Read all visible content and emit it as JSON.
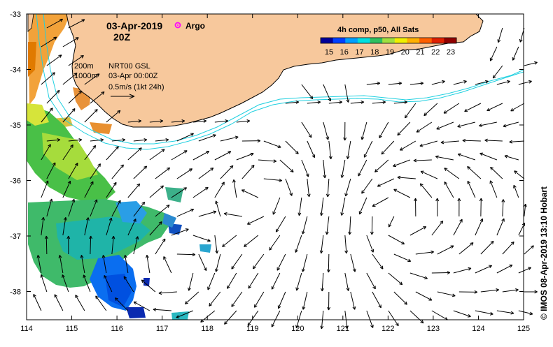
{
  "map": {
    "date_label": "03-Apr-2019",
    "time_label": "20Z",
    "argo_label": "Argo",
    "colorbar_title": "4h comp, p50, All Sats",
    "colorbar_ticks": [
      "15",
      "16",
      "17",
      "18",
      "19",
      "20",
      "21",
      "22",
      "23"
    ],
    "colorbar_colors": [
      "#000099",
      "#0040ff",
      "#00a0ff",
      "#00e0e0",
      "#30c060",
      "#a0e040",
      "#f0f000",
      "#ffb000",
      "#ff6000",
      "#e02000",
      "#900000"
    ],
    "legend": {
      "isobath_200": "200m",
      "isobath_1000": "1000m",
      "product": "NRT00 GSL",
      "analysis_time": "03-Apr 00:00Z",
      "arrow_scale": "0.5m/s (1kt 24h)"
    },
    "x_ticks": [
      "114",
      "115",
      "116",
      "117",
      "118",
      "119",
      "120",
      "121",
      "122",
      "123",
      "124",
      "125"
    ],
    "y_ticks": [
      "-33",
      "-34",
      "-35",
      "-36",
      "-37",
      "-38"
    ],
    "credit": "© IMOS 08-Apr-2019 13:10 Hobart",
    "colors": {
      "land": "#f7c89c",
      "isobath": "#20d0e0",
      "argo": "#ff00ff",
      "sst_warm": "#e07a00"
    }
  }
}
